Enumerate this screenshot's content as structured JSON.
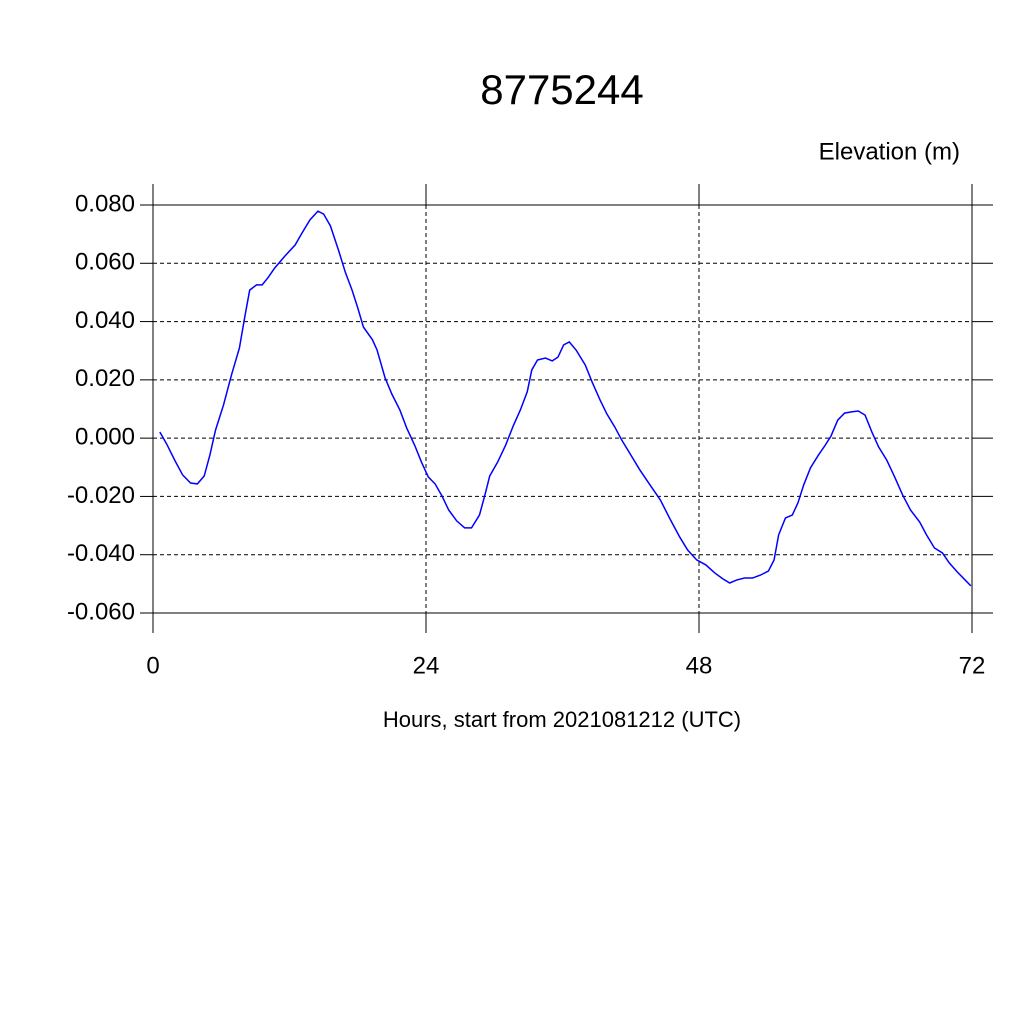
{
  "chart_data": {
    "type": "line",
    "title": "8775244",
    "ylabel": "Elevation (m)",
    "xlabel": "Hours, start from 2021081212 (UTC)",
    "xlim": [
      0,
      72
    ],
    "xticks": [
      0,
      24,
      48,
      72
    ],
    "ylim": [
      -0.06,
      0.08
    ],
    "yticks": [
      {
        "value": -0.06,
        "label": "-0.060"
      },
      {
        "value": -0.04,
        "label": "-0.040"
      },
      {
        "value": -0.02,
        "label": "-0.020"
      },
      {
        "value": 0,
        "label": "0.000"
      },
      {
        "value": 0.02,
        "label": "0.020"
      },
      {
        "value": 0.04,
        "label": "0.040"
      },
      {
        "value": 0.06,
        "label": "0.060"
      },
      {
        "value": 0.08,
        "label": "0.080"
      }
    ],
    "grid": true,
    "series": [
      {
        "color": "#0000ff",
        "x": [
          0.6,
          1.2,
          1.9,
          2.6,
          3.3,
          3.9,
          4.5,
          5.0,
          5.5,
          6.2,
          6.9,
          7.6,
          8.1,
          8.5,
          9.1,
          9.6,
          10.1,
          10.7,
          11.6,
          12.5,
          13.1,
          13.8,
          14.5,
          15.0,
          15.6,
          16.3,
          16.9,
          17.5,
          18.0,
          18.5,
          19.3,
          19.7,
          20.4,
          21.0,
          21.7,
          22.3,
          23.0,
          23.6,
          24.2,
          24.8,
          25.4,
          26.0,
          26.7,
          27.4,
          28.0,
          28.7,
          29.2,
          29.6,
          30.3,
          31.0,
          31.7,
          32.3,
          32.9,
          33.3,
          33.8,
          34.5,
          35.1,
          35.6,
          36.1,
          36.6,
          37.2,
          38.0,
          38.6,
          39.3,
          39.9,
          40.6,
          41.2,
          41.9,
          42.8,
          43.7,
          44.6,
          45.5,
          46.3,
          47.0,
          47.8,
          48.6,
          49.4,
          50.1,
          50.7,
          51.3,
          52.0,
          52.7,
          53.4,
          54.1,
          54.6,
          55.0,
          55.6,
          56.2,
          56.7,
          57.2,
          57.8,
          58.5,
          59.1,
          59.6,
          60.2,
          60.8,
          61.4,
          62.0,
          62.6,
          63.2,
          63.8,
          64.5,
          65.2,
          65.9,
          66.6,
          67.4,
          68.0,
          68.7,
          69.4,
          70.0,
          70.7,
          71.4,
          71.9
        ],
        "values": [
          0.0021,
          -0.002,
          -0.0075,
          -0.0126,
          -0.0154,
          -0.0157,
          -0.013,
          -0.0058,
          0.0028,
          0.0114,
          0.0217,
          0.031,
          0.0423,
          0.0508,
          0.0526,
          0.0526,
          0.055,
          0.0584,
          0.0625,
          0.0663,
          0.0704,
          0.0749,
          0.0779,
          0.0769,
          0.0728,
          0.0646,
          0.057,
          0.0508,
          0.0447,
          0.0381,
          0.0337,
          0.0302,
          0.0207,
          0.0151,
          0.0097,
          0.0035,
          -0.0024,
          -0.0082,
          -0.0133,
          -0.0157,
          -0.0198,
          -0.0247,
          -0.0284,
          -0.0308,
          -0.0308,
          -0.0264,
          -0.0192,
          -0.013,
          -0.0082,
          -0.0024,
          0.0045,
          0.0097,
          0.0159,
          0.0234,
          0.0268,
          0.0275,
          0.0265,
          0.0278,
          0.032,
          0.033,
          0.0302,
          0.0251,
          0.0193,
          0.0131,
          0.0083,
          0.0038,
          -0.0006,
          -0.0051,
          -0.0109,
          -0.0161,
          -0.0212,
          -0.0281,
          -0.0339,
          -0.0384,
          -0.0418,
          -0.0435,
          -0.0463,
          -0.0483,
          -0.0497,
          -0.0487,
          -0.048,
          -0.048,
          -0.047,
          -0.0456,
          -0.0418,
          -0.0332,
          -0.0274,
          -0.0264,
          -0.0222,
          -0.0161,
          -0.0102,
          -0.0058,
          -0.0024,
          0.0007,
          0.0062,
          0.0086,
          0.009,
          0.0093,
          0.0079,
          0.0021,
          -0.0031,
          -0.0075,
          -0.0133,
          -0.0195,
          -0.0247,
          -0.0288,
          -0.0332,
          -0.0377,
          -0.0394,
          -0.0428,
          -0.0459,
          -0.0487,
          -0.0507
        ]
      }
    ]
  }
}
